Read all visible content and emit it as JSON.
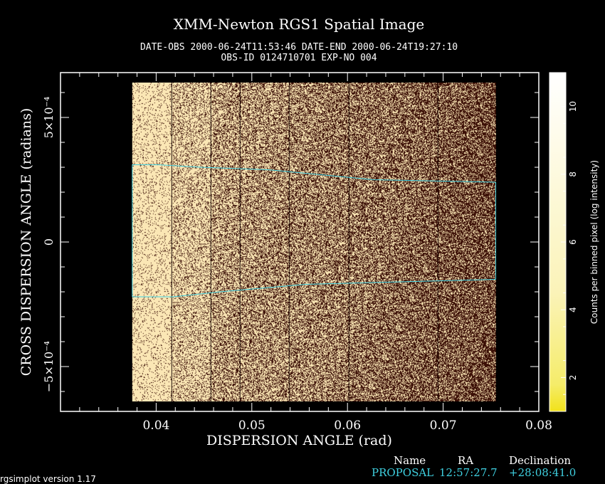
{
  "header": {
    "title": "XMM-Newton  RGS1 Spatial Image",
    "line1": "DATE-OBS 2000-06-24T11:53:46   DATE-END 2000-06-24T19:27:10",
    "line2": "OBS-ID 0124710701 EXP-NO 004"
  },
  "source": {
    "headers": [
      "Name",
      "RA",
      "Declination"
    ],
    "values": [
      "PROPOSAL",
      "12:57:27.7",
      "+28:08:41.0"
    ]
  },
  "footer": {
    "version": "rgsimplot version 1.17"
  },
  "colors": {
    "background": "#000000",
    "image_light": "#fbe7b5",
    "image_dark": "#3b0f06",
    "region": "#3fd0e0",
    "colorbar_top": "#ffffff",
    "colorbar_bottom": "#f2e21a"
  },
  "chart_data": {
    "type": "heatmap",
    "xlabel": "DISPERSION ANGLE (rad)",
    "ylabel": "CROSS DISPERSION ANGLE (radians)",
    "xlim": [
      0.03,
      0.08
    ],
    "ylim": [
      -0.00068,
      0.00068
    ],
    "x_ticks": [
      0.04,
      0.05,
      0.06,
      0.07,
      0.08
    ],
    "x_tick_labels": [
      "0.04",
      "0.05",
      "0.06",
      "0.07",
      "0.08"
    ],
    "y_ticks": [
      -0.0005,
      0,
      0.0005
    ],
    "y_tick_labels": [
      "−5×10⁻⁴",
      "0",
      "5×10⁻⁴"
    ],
    "image_extent": {
      "x": [
        0.0375,
        0.0755
      ],
      "y": [
        -0.00064,
        0.00064
      ]
    },
    "intensity_trend": "high counts at low dispersion angle, decreasing toward high dispersion angle",
    "region_upper": {
      "x": [
        0.0375,
        0.0402,
        0.0447,
        0.0517,
        0.0627,
        0.0755
      ],
      "y": [
        0.00031,
        0.00031,
        0.0003,
        0.00029,
        0.00025,
        0.00024
      ]
    },
    "region_lower": {
      "x": [
        0.0375,
        0.0418,
        0.0467,
        0.0556,
        0.0755
      ],
      "y": [
        -0.00022,
        -0.00022,
        -0.0002,
        -0.00017,
        -0.00015
      ]
    },
    "colorbar": {
      "label": "Counts per binned pixel (log intensity)",
      "ticks": [
        2,
        4,
        6,
        8,
        10
      ],
      "tick_labels": [
        "2",
        "4",
        "6",
        "8",
        "10"
      ],
      "range": [
        1,
        11
      ]
    }
  }
}
